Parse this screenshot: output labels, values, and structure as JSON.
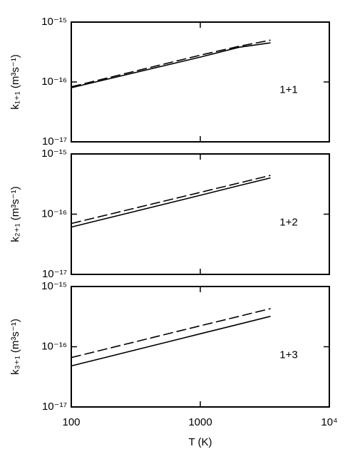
{
  "chart_data": [
    {
      "type": "line",
      "annotation": "1+1",
      "ylabel": "k₁₊₁ (m³s⁻¹)",
      "log_x": true,
      "log_y": true,
      "x": [
        100,
        1000,
        2000,
        3500
      ],
      "series": [
        {
          "color": "#000000",
          "linestyle": "solid",
          "values": [
            8e-17,
            2.6e-16,
            3.8e-16,
            4.5e-16
          ]
        },
        {
          "color": "#000000",
          "linestyle": "dashed",
          "values": [
            8.3e-17,
            2.8e-16,
            3.95e-16,
            5e-16
          ]
        }
      ],
      "xlim": [
        100,
        10000
      ],
      "xticks": [
        100,
        1000,
        10000
      ],
      "ylim": [
        1e-17,
        1e-15
      ],
      "yticks": [
        {
          "value": 1e-17,
          "label": "10⁻¹⁷"
        },
        {
          "value": 1e-16,
          "label": "10⁻¹⁶"
        },
        {
          "value": 1e-15,
          "label": "10⁻¹⁵"
        }
      ]
    },
    {
      "type": "line",
      "annotation": "1+2",
      "ylabel": "k₂₊₁ (m³s⁻¹)",
      "log_x": true,
      "log_y": true,
      "x": [
        100,
        1000,
        2000,
        3500
      ],
      "series": [
        {
          "color": "#000000",
          "linestyle": "solid",
          "values": [
            6.1e-17,
            2.06e-16,
            2.98e-16,
            4e-16
          ]
        },
        {
          "color": "#000000",
          "linestyle": "dashed",
          "values": [
            7e-17,
            2.3e-16,
            3.3e-16,
            4.4e-16
          ]
        }
      ],
      "xlim": [
        100,
        10000
      ],
      "xticks": [
        100,
        1000,
        10000
      ],
      "ylim": [
        1e-17,
        1e-15
      ],
      "yticks": [
        {
          "value": 1e-17,
          "label": "10⁻¹⁷"
        },
        {
          "value": 1e-16,
          "label": "10⁻¹⁶"
        },
        {
          "value": 1e-15,
          "label": "10⁻¹⁵"
        }
      ]
    },
    {
      "type": "line",
      "annotation": "1+3",
      "ylabel": "k₃₊₁ (m³s⁻¹)",
      "xlabel": "T (K)",
      "log_x": true,
      "log_y": true,
      "x": [
        100,
        1000,
        2000,
        3500
      ],
      "series": [
        {
          "color": "#000000",
          "linestyle": "solid",
          "values": [
            4.8e-17,
            1.64e-16,
            2.37e-16,
            3.2e-16
          ]
        },
        {
          "color": "#000000",
          "linestyle": "dashed",
          "values": [
            6.6e-17,
            2.23e-16,
            3.2e-16,
            4.3e-16
          ]
        }
      ],
      "xlim": [
        100,
        10000
      ],
      "xticks": [
        100,
        1000,
        {
          "value": 10000,
          "label": "10⁴"
        }
      ],
      "ylim": [
        1e-17,
        1e-15
      ],
      "yticks": [
        {
          "value": 1e-17,
          "label": "10⁻¹⁷"
        },
        {
          "value": 1e-16,
          "label": "10⁻¹⁶"
        },
        {
          "value": 1e-15,
          "label": "10⁻¹⁵"
        }
      ]
    }
  ]
}
